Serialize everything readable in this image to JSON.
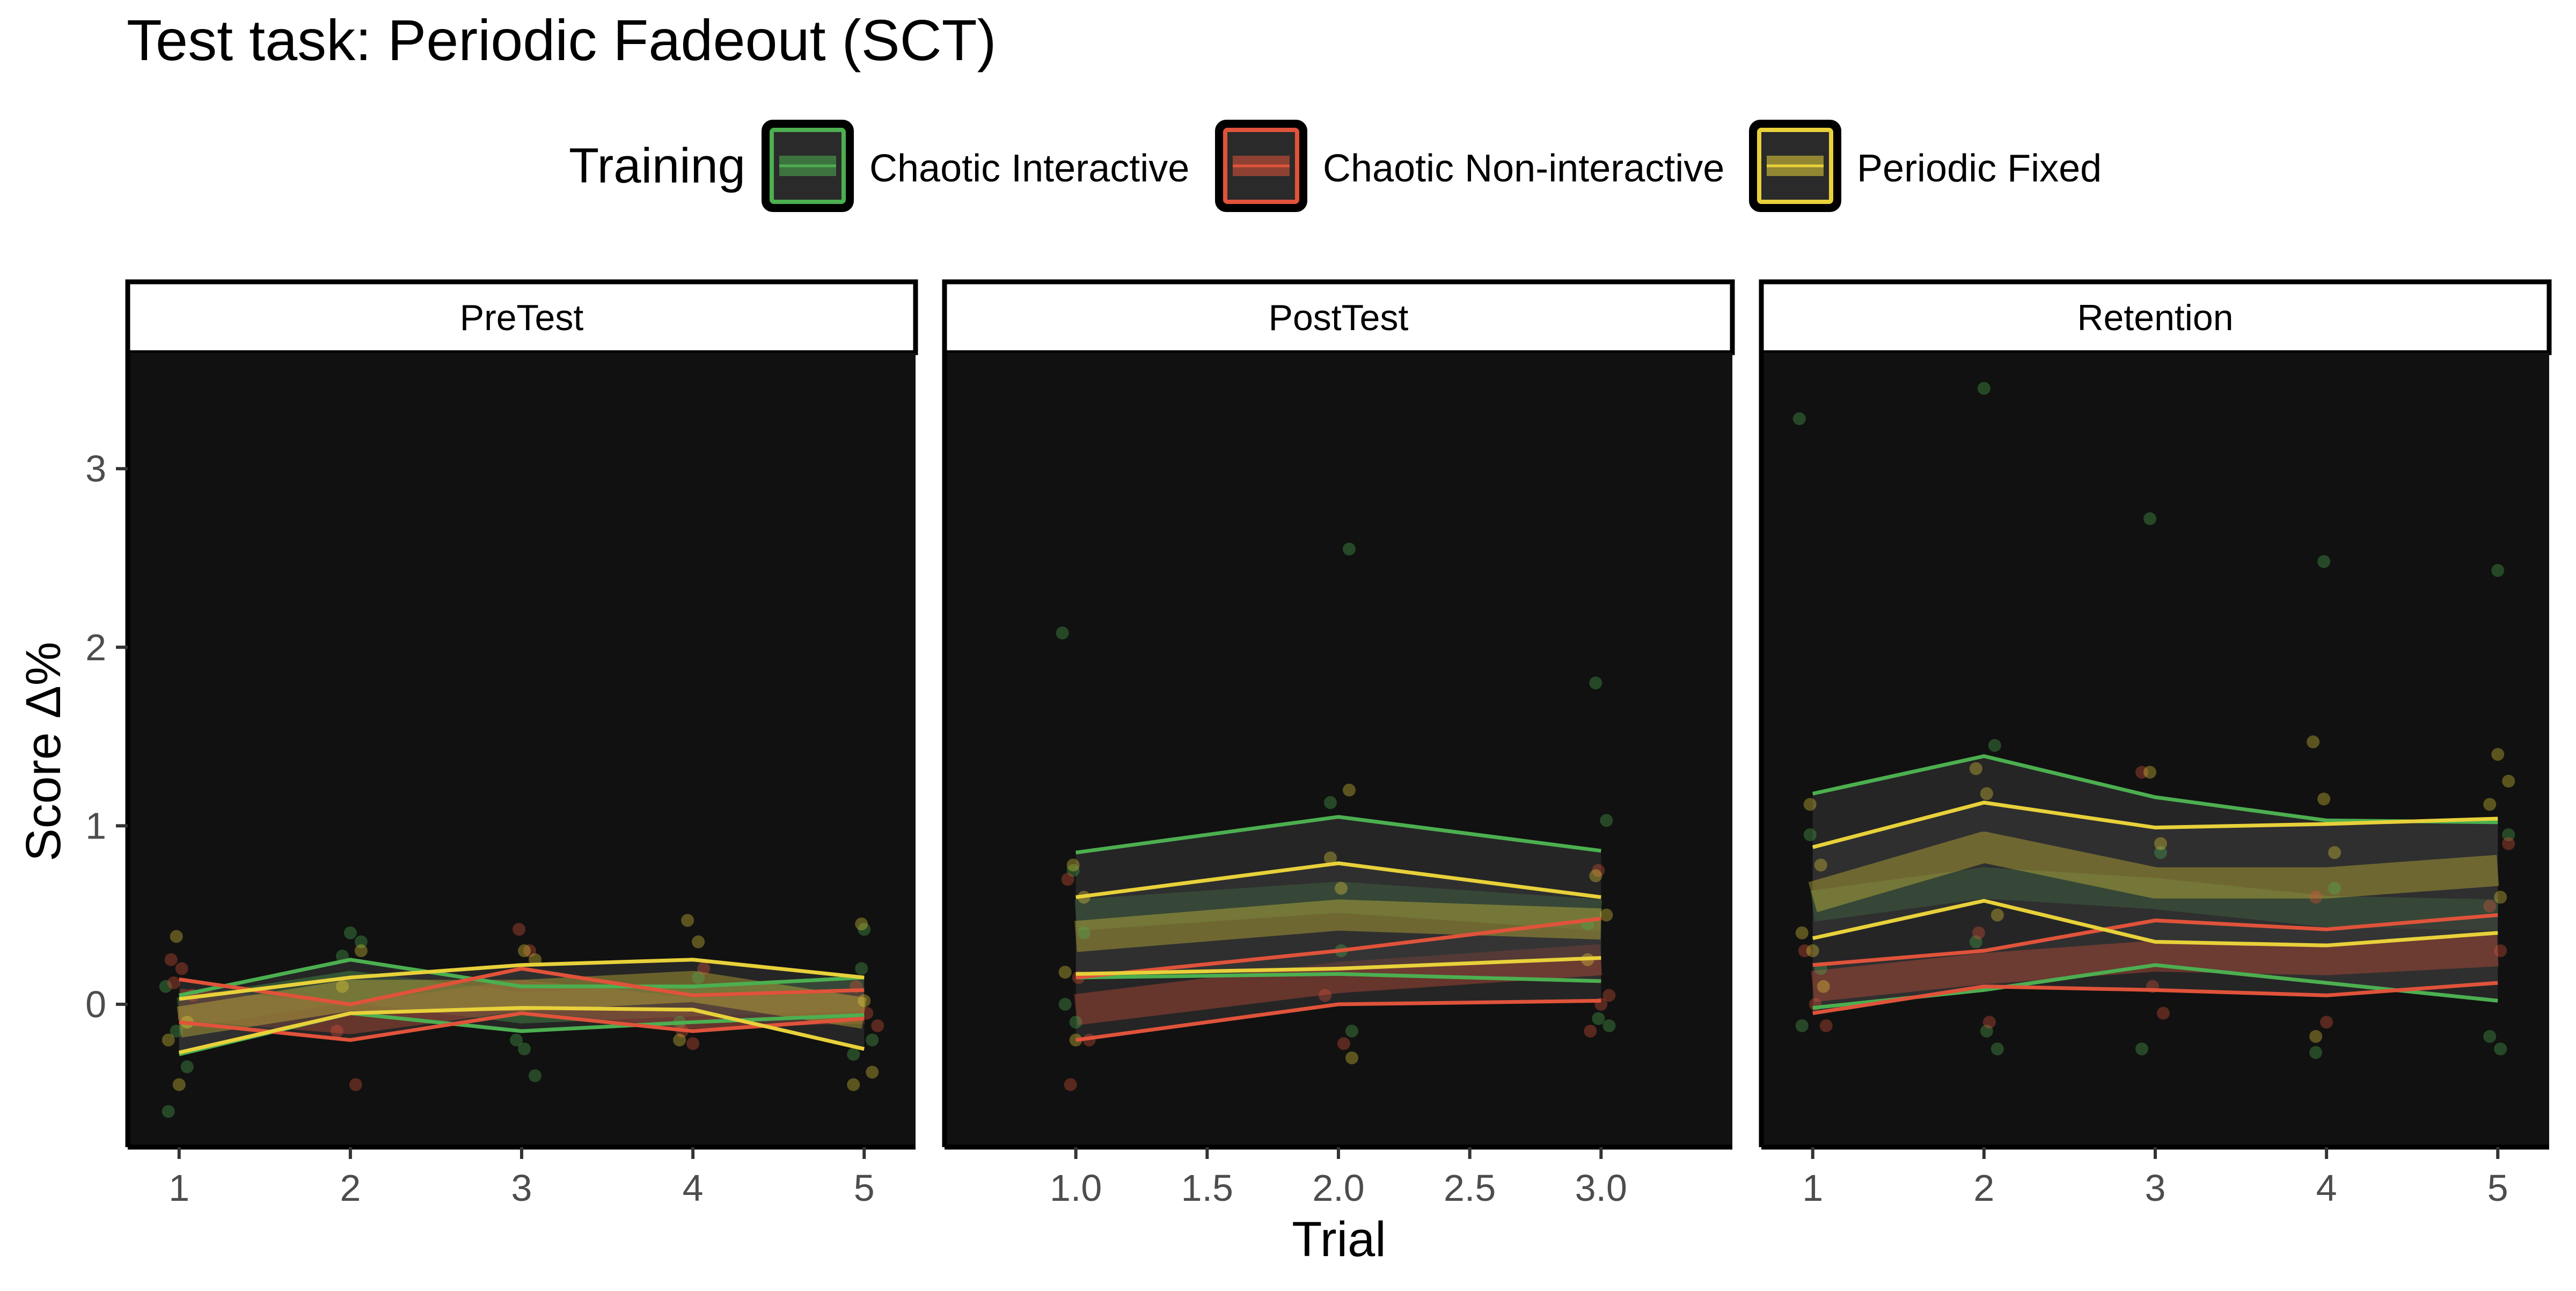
{
  "chart_data": {
    "type": "line",
    "title": "Test task: Periodic Fadeout (SCT)",
    "xlabel": "Trial",
    "ylabel": "Score Δ%",
    "legend": {
      "title": "Training",
      "placement": "top",
      "entries": [
        {
          "label": "Chaotic Interactive",
          "color": "#4caf50"
        },
        {
          "label": "Chaotic Non-interactive",
          "color": "#e0533a"
        },
        {
          "label": "Periodic Fixed",
          "color": "#e8d13a"
        }
      ]
    },
    "ylim": [
      -0.8,
      3.65
    ],
    "y_ticks": [
      0,
      1,
      2,
      3
    ],
    "y_tick_labels": [
      "0",
      "1",
      "2",
      "3"
    ],
    "panel_background": "#111111",
    "grid": false,
    "panels": [
      {
        "name": "PreTest",
        "xlim": [
          0.7,
          5.3
        ],
        "x_ticks": [
          1,
          2,
          3,
          4,
          5
        ],
        "x_tick_labels": [
          "1",
          "2",
          "3",
          "4",
          "5"
        ],
        "series": [
          {
            "name": "Chaotic Interactive",
            "x": [
              1,
              2,
              3,
              4,
              5
            ],
            "mean": [
              -0.05,
              0.1,
              -0.02,
              0.02,
              0.05
            ],
            "ci_low": [
              -0.28,
              -0.05,
              -0.15,
              -0.1,
              -0.06
            ],
            "ci_high": [
              0.05,
              0.25,
              0.1,
              0.1,
              0.15
            ],
            "points": [
              [
                1,
                0.1
              ],
              [
                1,
                -0.15
              ],
              [
                1,
                -0.35
              ],
              [
                1,
                -0.6
              ],
              [
                2,
                0.4
              ],
              [
                2,
                0.35
              ],
              [
                2,
                0.27
              ],
              [
                3,
                -0.25
              ],
              [
                3,
                -0.4
              ],
              [
                3,
                -0.2
              ],
              [
                4,
                0.15
              ],
              [
                4,
                -0.1
              ],
              [
                5,
                0.2
              ],
              [
                5,
                -0.2
              ],
              [
                5,
                -0.28
              ],
              [
                5,
                0.42
              ]
            ]
          },
          {
            "name": "Chaotic Non-interactive",
            "x": [
              1,
              2,
              3,
              4,
              5
            ],
            "mean": [
              0.0,
              -0.08,
              0.05,
              -0.05,
              -0.02
            ],
            "ci_low": [
              -0.1,
              -0.2,
              -0.05,
              -0.15,
              -0.08
            ],
            "ci_high": [
              0.14,
              0.0,
              0.2,
              0.05,
              0.08
            ],
            "points": [
              [
                1,
                0.25
              ],
              [
                1,
                0.2
              ],
              [
                1,
                0.05
              ],
              [
                1,
                0.12
              ],
              [
                2,
                -0.45
              ],
              [
                2,
                -0.15
              ],
              [
                3,
                0.42
              ],
              [
                3,
                0.3
              ],
              [
                4,
                -0.15
              ],
              [
                4,
                -0.22
              ],
              [
                4,
                0.2
              ],
              [
                5,
                0.1
              ],
              [
                5,
                -0.05
              ],
              [
                5,
                -0.12
              ]
            ]
          },
          {
            "name": "Periodic Fixed",
            "x": [
              1,
              2,
              3,
              4,
              5
            ],
            "mean": [
              -0.1,
              0.05,
              0.05,
              0.1,
              -0.05
            ],
            "ci_low": [
              -0.27,
              -0.05,
              -0.02,
              -0.03,
              -0.25
            ],
            "ci_high": [
              0.03,
              0.15,
              0.22,
              0.25,
              0.15
            ],
            "points": [
              [
                1,
                0.38
              ],
              [
                1,
                -0.1
              ],
              [
                1,
                -0.2
              ],
              [
                1,
                -0.45
              ],
              [
                2,
                0.3
              ],
              [
                2,
                0.1
              ],
              [
                3,
                0.3
              ],
              [
                3,
                0.25
              ],
              [
                4,
                0.47
              ],
              [
                4,
                0.35
              ],
              [
                4,
                -0.2
              ],
              [
                5,
                0.45
              ],
              [
                5,
                -0.38
              ],
              [
                5,
                -0.45
              ],
              [
                5,
                0.02
              ]
            ]
          }
        ]
      },
      {
        "name": "PostTest",
        "xlim": [
          0.5,
          3.5
        ],
        "x_ticks": [
          1.0,
          1.5,
          2.0,
          2.5,
          3.0
        ],
        "x_tick_labels": [
          "1.0",
          "1.5",
          "2.0",
          "2.5",
          "3.0"
        ],
        "series": [
          {
            "name": "Chaotic Interactive",
            "x": [
              1,
              2,
              3
            ],
            "mean": [
              0.5,
              0.6,
              0.5
            ],
            "ci_low": [
              0.15,
              0.17,
              0.13
            ],
            "ci_high": [
              0.85,
              1.05,
              0.86
            ],
            "points": [
              [
                1,
                2.08
              ],
              [
                1,
                0.75
              ],
              [
                1,
                0.4
              ],
              [
                1,
                0.0
              ],
              [
                1,
                -0.1
              ],
              [
                2,
                2.55
              ],
              [
                2,
                1.13
              ],
              [
                2,
                0.3
              ],
              [
                2,
                -0.15
              ],
              [
                3,
                1.8
              ],
              [
                3,
                1.03
              ],
              [
                3,
                0.45
              ],
              [
                3,
                -0.08
              ],
              [
                3,
                -0.12
              ]
            ]
          },
          {
            "name": "Chaotic Non-interactive",
            "x": [
              1,
              2,
              3
            ],
            "mean": [
              -0.03,
              0.15,
              0.25
            ],
            "ci_low": [
              -0.2,
              0.0,
              0.02
            ],
            "ci_high": [
              0.15,
              0.3,
              0.48
            ],
            "points": [
              [
                1,
                0.7
              ],
              [
                1,
                0.15
              ],
              [
                1,
                -0.2
              ],
              [
                1,
                -0.45
              ],
              [
                2,
                -0.22
              ],
              [
                2,
                0.05
              ],
              [
                3,
                0.75
              ],
              [
                3,
                0.05
              ],
              [
                3,
                -0.15
              ],
              [
                3,
                0.0
              ]
            ]
          },
          {
            "name": "Periodic Fixed",
            "x": [
              1,
              2,
              3
            ],
            "mean": [
              0.38,
              0.5,
              0.45
            ],
            "ci_low": [
              0.17,
              0.2,
              0.26
            ],
            "ci_high": [
              0.6,
              0.79,
              0.6
            ],
            "points": [
              [
                1,
                0.78
              ],
              [
                1,
                0.6
              ],
              [
                1,
                0.18
              ],
              [
                1,
                -0.2
              ],
              [
                2,
                1.2
              ],
              [
                2,
                0.82
              ],
              [
                2,
                0.65
              ],
              [
                2,
                -0.3
              ],
              [
                3,
                0.72
              ],
              [
                3,
                0.5
              ],
              [
                3,
                0.25
              ]
            ]
          }
        ]
      },
      {
        "name": "Retention",
        "xlim": [
          0.7,
          5.3
        ],
        "x_ticks": [
          1,
          2,
          3,
          4,
          5
        ],
        "x_tick_labels": [
          "1",
          "2",
          "3",
          "4",
          "5"
        ],
        "series": [
          {
            "name": "Chaotic Interactive",
            "x": [
              1,
              2,
              3,
              4,
              5
            ],
            "mean": [
              0.55,
              0.68,
              0.62,
              0.52,
              0.5
            ],
            "ci_low": [
              -0.02,
              0.08,
              0.22,
              0.12,
              0.02
            ],
            "ci_high": [
              1.18,
              1.39,
              1.16,
              1.03,
              1.02
            ],
            "points": [
              [
                1,
                3.28
              ],
              [
                1,
                0.95
              ],
              [
                1,
                0.2
              ],
              [
                1,
                -0.12
              ],
              [
                2,
                3.45
              ],
              [
                2,
                1.45
              ],
              [
                2,
                0.35
              ],
              [
                2,
                -0.15
              ],
              [
                2,
                -0.25
              ],
              [
                3,
                2.72
              ],
              [
                3,
                0.85
              ],
              [
                3,
                -0.25
              ],
              [
                4,
                2.48
              ],
              [
                4,
                0.65
              ],
              [
                4,
                -0.27
              ],
              [
                5,
                2.43
              ],
              [
                5,
                0.95
              ],
              [
                5,
                -0.18
              ],
              [
                5,
                -0.25
              ]
            ]
          },
          {
            "name": "Chaotic Non-interactive",
            "x": [
              1,
              2,
              3,
              4,
              5
            ],
            "mean": [
              0.1,
              0.2,
              0.27,
              0.25,
              0.3
            ],
            "ci_low": [
              -0.05,
              0.1,
              0.08,
              0.05,
              0.12
            ],
            "ci_high": [
              0.22,
              0.3,
              0.47,
              0.42,
              0.5
            ],
            "points": [
              [
                1,
                0.3
              ],
              [
                1,
                0.0
              ],
              [
                1,
                -0.12
              ],
              [
                2,
                0.4
              ],
              [
                2,
                -0.1
              ],
              [
                3,
                1.3
              ],
              [
                3,
                0.1
              ],
              [
                3,
                -0.05
              ],
              [
                4,
                0.6
              ],
              [
                4,
                -0.1
              ],
              [
                5,
                0.9
              ],
              [
                5,
                0.55
              ],
              [
                5,
                0.3
              ]
            ]
          },
          {
            "name": "Periodic Fixed",
            "x": [
              1,
              2,
              3,
              4,
              5
            ],
            "mean": [
              0.6,
              0.88,
              0.68,
              0.68,
              0.75
            ],
            "ci_low": [
              0.37,
              0.58,
              0.35,
              0.33,
              0.4
            ],
            "ci_high": [
              0.88,
              1.13,
              0.99,
              1.01,
              1.04
            ],
            "points": [
              [
                1,
                1.12
              ],
              [
                1,
                0.78
              ],
              [
                1,
                0.4
              ],
              [
                1,
                0.3
              ],
              [
                1,
                0.1
              ],
              [
                2,
                1.32
              ],
              [
                2,
                1.18
              ],
              [
                2,
                0.5
              ],
              [
                3,
                1.3
              ],
              [
                3,
                0.9
              ],
              [
                4,
                1.47
              ],
              [
                4,
                1.15
              ],
              [
                4,
                0.85
              ],
              [
                4,
                -0.18
              ],
              [
                5,
                1.4
              ],
              [
                5,
                1.25
              ],
              [
                5,
                1.12
              ],
              [
                5,
                0.6
              ]
            ]
          }
        ]
      }
    ]
  }
}
